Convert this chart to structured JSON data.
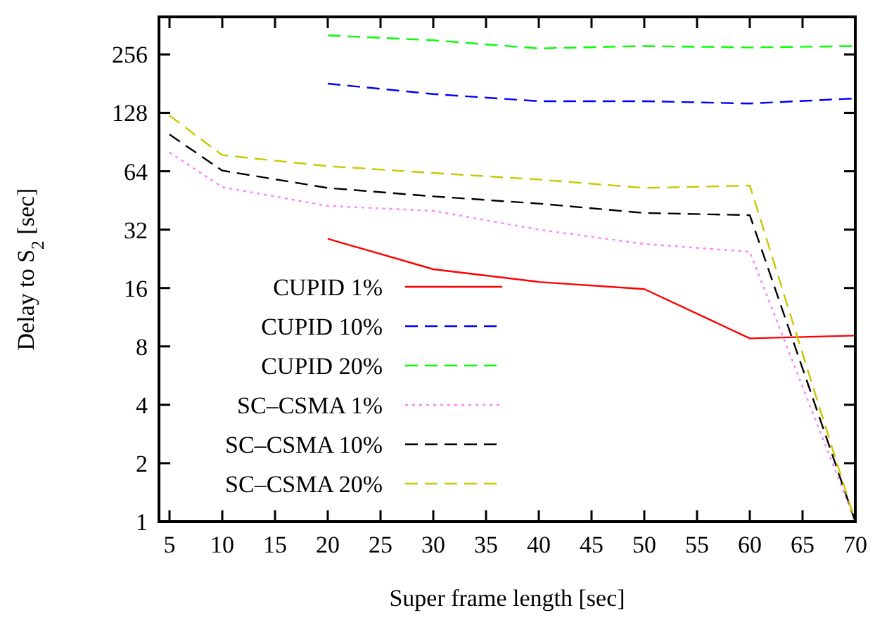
{
  "chart_data": {
    "type": "line",
    "xlabel": "Super frame length [sec]",
    "ylabel": "Delay to S$_{2}$ [sec]",
    "log": "y",
    "grid": false,
    "legend": "bottom left",
    "xlim": [
      4,
      70
    ],
    "xticks": [
      5,
      10,
      15,
      20,
      25,
      30,
      35,
      40,
      45,
      50,
      55,
      60,
      65,
      70
    ],
    "ylim": [
      1,
      400
    ],
    "yticks": [
      1,
      2,
      4,
      8,
      16,
      32,
      64,
      128,
      256
    ],
    "series": [
      {
        "name": "CUPID 1%",
        "color": "#ff0000",
        "line_style": "solid",
        "x": [
          20,
          30,
          40,
          50,
          60,
          70
        ],
        "values": [
          28.7,
          20,
          17.2,
          15.8,
          8.8,
          9.1
        ]
      },
      {
        "name": "CUPID 10%",
        "color": "#0000ff",
        "line_style": "dashed",
        "x": [
          20,
          30,
          40,
          50,
          60,
          70
        ],
        "values": [
          181,
          160,
          147,
          147,
          143,
          152
        ]
      },
      {
        "name": "CUPID 20%",
        "color": "#00ff00",
        "line_style": "dashed",
        "x": [
          20,
          30,
          40,
          50,
          60,
          70
        ],
        "values": [
          321,
          303,
          275,
          283,
          278,
          283
        ]
      },
      {
        "name": "SC–CSMA 1%",
        "color": "#ff80ff",
        "line_style": "dotted",
        "x": [
          5,
          10,
          20,
          30,
          40,
          50,
          60,
          70
        ],
        "values": [
          80,
          53,
          42.4,
          40,
          32,
          27,
          24.6,
          1
        ]
      },
      {
        "name": "SC–CSMA 10%",
        "color": "#000000",
        "line_style": "dashed",
        "x": [
          5,
          10,
          20,
          30,
          40,
          50,
          60,
          70
        ],
        "values": [
          99,
          64.5,
          52.5,
          47.5,
          43.6,
          39,
          38,
          1
        ]
      },
      {
        "name": "SC–CSMA 20%",
        "color": "#c8c800",
        "line_style": "dashed",
        "x": [
          5,
          10,
          20,
          30,
          40,
          50,
          60,
          70
        ],
        "values": [
          124,
          77.5,
          68,
          62.7,
          58,
          52.5,
          54,
          1
        ]
      }
    ]
  }
}
